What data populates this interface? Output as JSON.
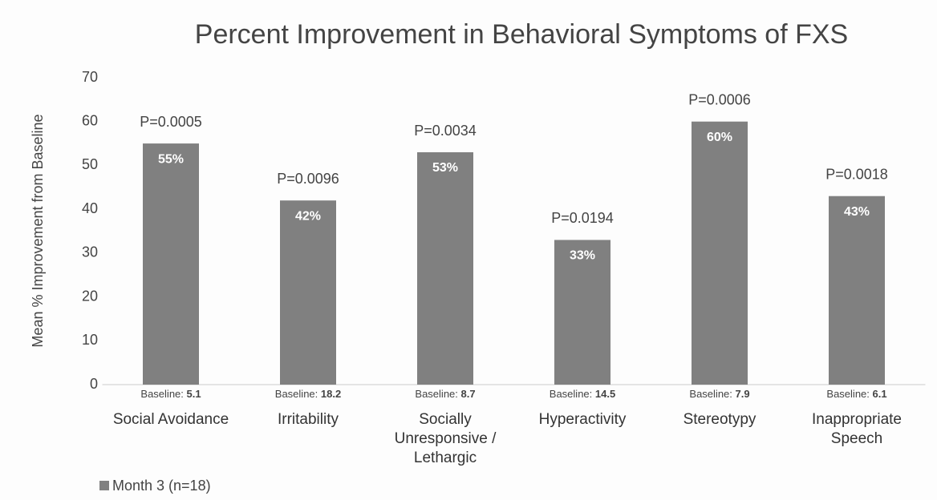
{
  "chart_data": {
    "type": "bar",
    "title": "Percent Improvement in Behavioral Symptoms of FXS",
    "y_label": "Mean % Improvement from Baseline",
    "categories": [
      "Social Avoidance",
      "Irritability",
      "Socially Unresponsive / Lethargic",
      "Hyperactivity",
      "Stereotypy",
      "Inappropriate Speech"
    ],
    "series": [
      {
        "name": "Month 3 (n=18)",
        "color": "#808080",
        "values": [
          55,
          42,
          53,
          33,
          60,
          43
        ],
        "value_labels": [
          "55%",
          "42%",
          "53%",
          "33%",
          "60%",
          "43%"
        ]
      }
    ],
    "p_values": [
      "P=0.0005",
      "P=0.0096",
      "P=0.0034",
      "P=0.0194",
      "P=0.0006",
      "P=0.0018"
    ],
    "baseline_label": "Baseline:",
    "baselines": [
      5.1,
      18.2,
      8.7,
      14.5,
      7.9,
      6.1
    ],
    "ylim": [
      0,
      70
    ],
    "yticks": [
      0,
      10,
      20,
      30,
      40,
      50,
      60,
      70
    ],
    "grid": false,
    "legend": "bottom-left"
  }
}
